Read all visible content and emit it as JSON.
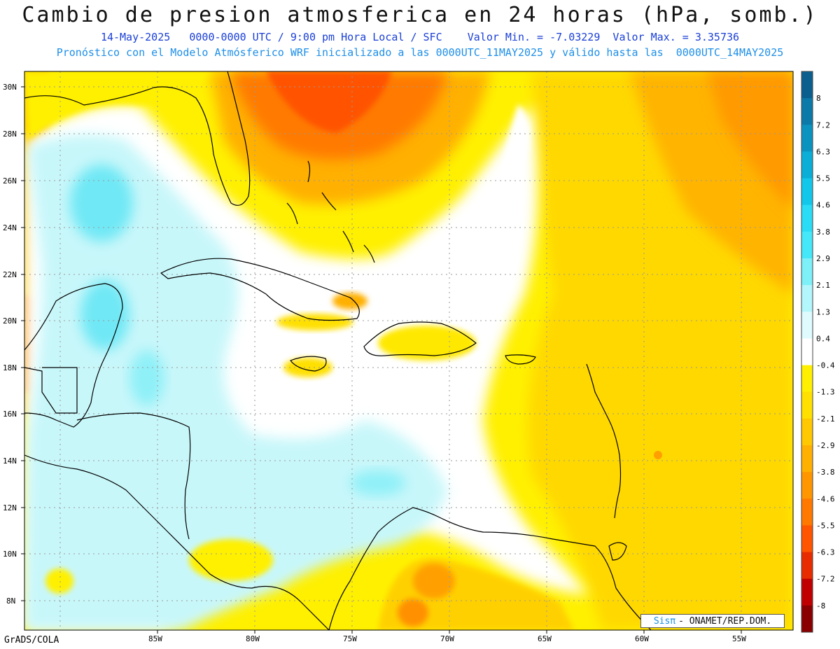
{
  "title": "Cambio de presion atmosferica en 24 horas (hPa, somb.)",
  "subtitle1": "14-May-2025   0000-0000 UTC / 9:00 pm Hora Local / SFC    Valor Min. = -7.03229  Valor Max. = 3.35736",
  "subtitle2": "Pronóstico con el Modelo Atmósferico WRF inicializado a las 0000UTC_11MAY2025 y válido hasta las  0000UTC_14MAY2025",
  "lat_labels": [
    "30N",
    "28N",
    "26N",
    "24N",
    "22N",
    "20N",
    "18N",
    "16N",
    "14N",
    "12N",
    "10N",
    "8N"
  ],
  "lon_labels": [
    "85W",
    "80W",
    "75W",
    "70W",
    "65W",
    "60W",
    "55W"
  ],
  "colorbar": {
    "labels": [
      "8",
      "7.2",
      "6.3",
      "5.5",
      "4.6",
      "3.8",
      "2.9",
      "2.1",
      "1.3",
      "0.4",
      "-0.4",
      "-1.3",
      "-2.1",
      "-2.9",
      "-3.8",
      "-4.6",
      "-5.5",
      "-6.3",
      "-7.2",
      "-8"
    ],
    "colors": [
      "#0a5f8f",
      "#0b7aa8",
      "#0b93c0",
      "#0aaed6",
      "#12c7ea",
      "#2adcf5",
      "#45e8f8",
      "#7df0f8",
      "#b3f6fb",
      "#dffbfd",
      "#ffffff",
      "#ffef00",
      "#ffe000",
      "#ffc800",
      "#ffb000",
      "#ff9600",
      "#ff7800",
      "#ff5400",
      "#e82c00",
      "#c00000",
      "#8a0000"
    ]
  },
  "footer_credit": "GrADS/COLA",
  "badge": {
    "sis": "Sisπ",
    "text": "- ONAMET/REP.DOM."
  },
  "map_colors": {
    "ocean_neutral": "#ffffff",
    "light_cyan": "#c8f7fa",
    "cyan": "#6fe8f5",
    "yellow": "#fff000",
    "gold": "#ffd000",
    "orange": "#ff9a00",
    "red_orange": "#ff5a00"
  }
}
